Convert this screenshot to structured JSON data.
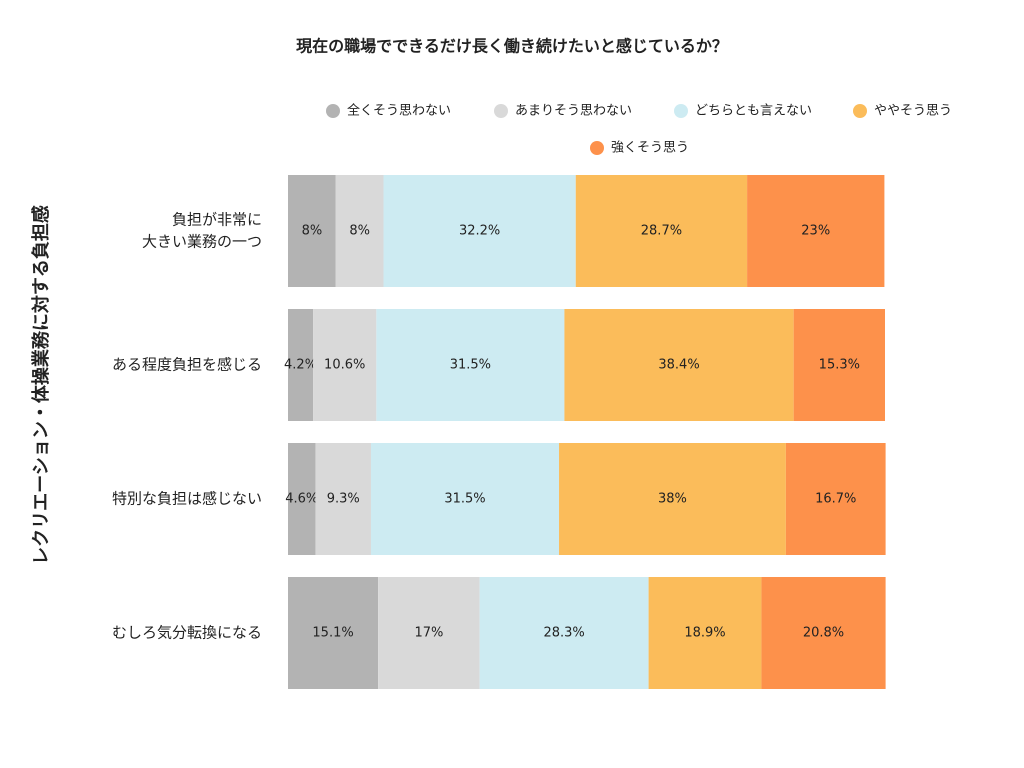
{
  "chart_data": {
    "type": "stacked-bar-horizontal",
    "title": "現在の職場でできるだけ長く働き続けたいと感じているか？",
    "y_label": "レクリエーション・体操業務に対する負担感",
    "categories": [
      [
        "負担が非常に",
        "大きい業務の一つ"
      ],
      [
        "ある程度負担を感じる"
      ],
      [
        "特別な負担は感じない"
      ],
      [
        "むしろ気分転換になる"
      ]
    ],
    "xlim": [
      0,
      100
    ],
    "series": [
      {
        "name": "全くそう思わない",
        "color": "#b3b3b3",
        "values": [
          8,
          4.2,
          4.6,
          15.1
        ],
        "value_labels": [
          "8%",
          "4.2%",
          "4.6%",
          "15.1%"
        ]
      },
      {
        "name": "あまりそう思わない",
        "color": "#d9d9d9",
        "values": [
          8,
          10.6,
          9.3,
          17
        ],
        "value_labels": [
          "8%",
          "10.6%",
          "9.3%",
          "17%"
        ]
      },
      {
        "name": "どちらとも言えない",
        "color": "#cdebf2",
        "values": [
          32.2,
          31.5,
          31.5,
          28.3
        ],
        "value_labels": [
          "32.2%",
          "31.5%",
          "31.5%",
          "28.3%"
        ]
      },
      {
        "name": "ややそう思う",
        "color": "#fbbc5a",
        "values": [
          28.7,
          38.4,
          38,
          18.9
        ],
        "value_labels": [
          "28.7%",
          "38.4%",
          "38%",
          "18.9%"
        ]
      },
      {
        "name": "強くそう思う",
        "color": "#fd914b",
        "values": [
          23,
          15.3,
          16.7,
          20.8
        ],
        "value_labels": [
          "23%",
          "15.3%",
          "16.7%",
          "20.8%"
        ]
      }
    ]
  }
}
